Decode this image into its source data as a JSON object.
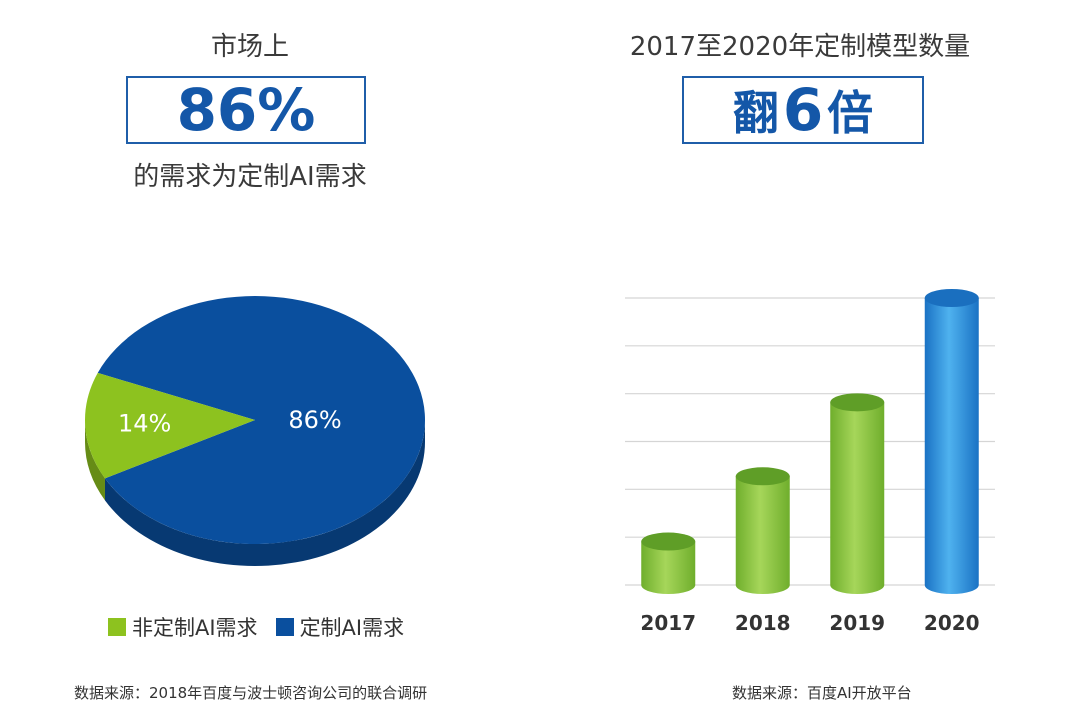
{
  "left": {
    "heading_top": "市场上",
    "highlight": "86%",
    "heading_bottom": "的需求为定制AI需求",
    "source": "数据来源：2018年百度与波士顿咨询公司的联合调研"
  },
  "right": {
    "heading": "2017至2020年定制模型数量",
    "highlight_prefix": "翻",
    "highlight_number": "6",
    "highlight_suffix": "倍",
    "source": "数据来源：百度AI开放平台"
  },
  "colors": {
    "custom": "#0a4f9e",
    "non_custom": "#8dc21f",
    "box_border": "#1f5ea9",
    "highlight_text": "#1457a8",
    "bar_green": "#8dc63f",
    "bar_blue": "#2e8fd8"
  },
  "chart_data": [
    {
      "type": "pie",
      "slices": [
        {
          "name": "非定制AI需求",
          "value": 14,
          "label": "14%",
          "color": "#8dc21f"
        },
        {
          "name": "定制AI需求",
          "value": 86,
          "label": "86%",
          "color": "#0a4f9e"
        }
      ],
      "legend": [
        "非定制AI需求",
        "定制AI需求"
      ],
      "legend_position": "bottom"
    },
    {
      "type": "bar",
      "categories": [
        "2017",
        "2018",
        "2019",
        "2020"
      ],
      "values": [
        1,
        2.5,
        4.2,
        6.6
      ],
      "ylim": [
        0,
        6.6
      ],
      "grid": true,
      "colors": [
        "#8dc63f",
        "#8dc63f",
        "#8dc63f",
        "#2e8fd8"
      ]
    }
  ]
}
